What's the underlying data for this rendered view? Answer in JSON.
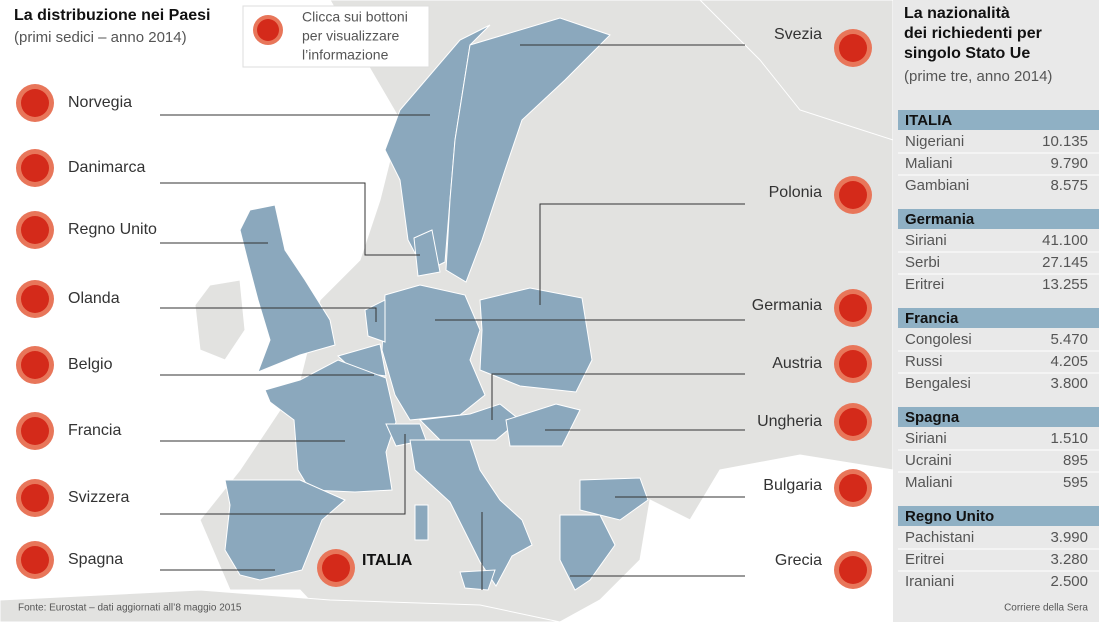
{
  "header": {
    "title": "La distribuzione nei Paesi",
    "subtitle": "(primi sedici – anno 2014)"
  },
  "hint": [
    "Clicca sui bottoni",
    "per visualizzare",
    "l’informazione"
  ],
  "countries_left": [
    "Norvegia",
    "Danimarca",
    "Regno Unito",
    "Olanda",
    "Belgio",
    "Francia",
    "Svizzera",
    "Spagna"
  ],
  "countries_right": [
    "Svezia",
    "Polonia",
    "Germania",
    "Austria",
    "Ungheria",
    "Bulgaria",
    "Grecia"
  ],
  "highlight": "ITALIA",
  "sidebar": {
    "title": [
      "La nazionalità",
      "dei richiedenti per",
      "singolo Stato Ue"
    ],
    "subtitle": "(prime tre, anno 2014)",
    "groups": [
      {
        "country": "ITALIA",
        "rows": [
          [
            "Nigeriani",
            "10.135"
          ],
          [
            "Maliani",
            "9.790"
          ],
          [
            "Gambiani",
            "8.575"
          ]
        ]
      },
      {
        "country": "Germania",
        "rows": [
          [
            "Siriani",
            "41.100"
          ],
          [
            "Serbi",
            "27.145"
          ],
          [
            "Eritrei",
            "13.255"
          ]
        ]
      },
      {
        "country": "Francia",
        "rows": [
          [
            "Congolesi",
            "5.470"
          ],
          [
            "Russi",
            "4.205"
          ],
          [
            "Bengalesi",
            "3.800"
          ]
        ]
      },
      {
        "country": "Spagna",
        "rows": [
          [
            "Siriani",
            "1.510"
          ],
          [
            "Ucraini",
            "895"
          ],
          [
            "Maliani",
            "595"
          ]
        ]
      },
      {
        "country": "Regno Unito",
        "rows": [
          [
            "Pachistani",
            "3.990"
          ],
          [
            "Eritrei",
            "3.280"
          ],
          [
            "Iraniani",
            "2.500"
          ]
        ]
      }
    ]
  },
  "footer": {
    "source": "Fonte: Eurostat – dati aggiornati all’8 maggio 2015",
    "credit": "Corriere della Sera"
  }
}
